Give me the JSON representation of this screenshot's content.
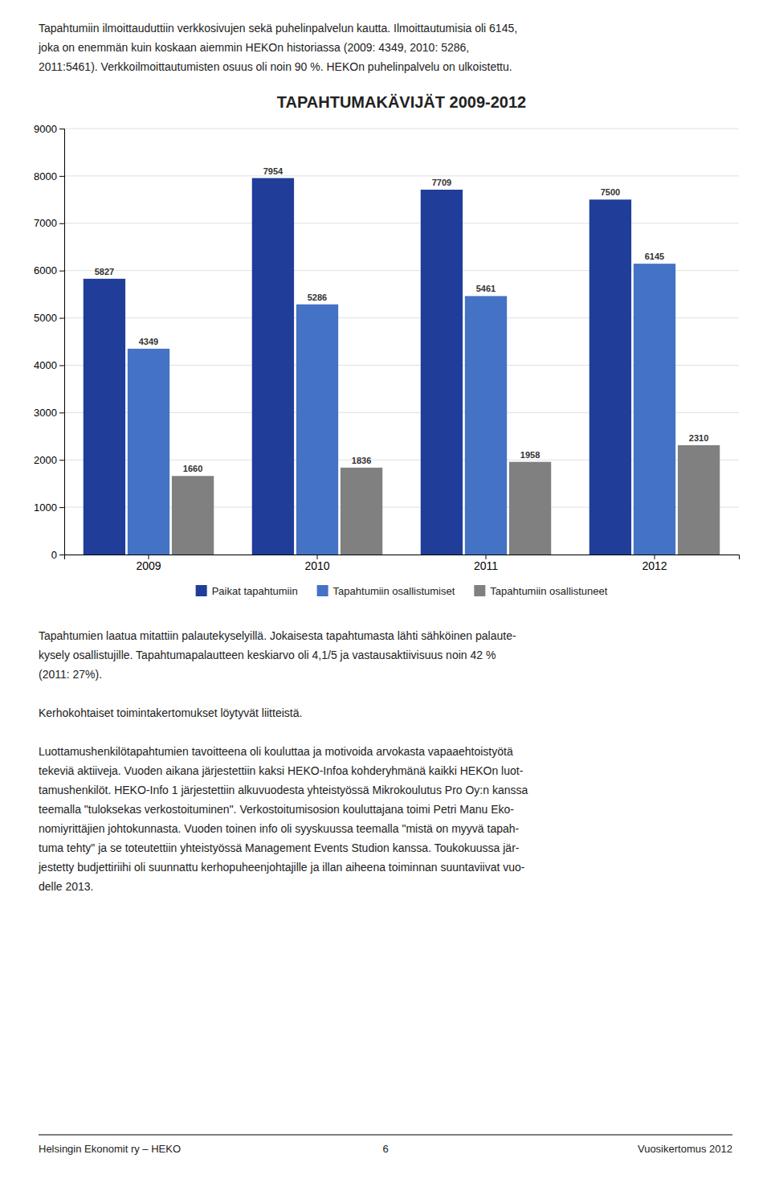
{
  "chart_data": {
    "type": "bar",
    "title": "TAPAHTUMAKÄVIJÄT 2009-2012",
    "categories": [
      "2009",
      "2010",
      "2011",
      "2012"
    ],
    "series": [
      {
        "name": "Paikat tapahtumiin",
        "color": "#1F3D99",
        "values": [
          5827,
          7954,
          7709,
          7500
        ]
      },
      {
        "name": "Tapahtumiin osallistumiset",
        "color": "#4472C4",
        "values": [
          4349,
          5286,
          5461,
          6145
        ]
      },
      {
        "name": "Tapahtumiin osallistuneet",
        "color": "#808080",
        "values": [
          1660,
          1836,
          1958,
          2310
        ]
      }
    ],
    "ylim": [
      0,
      9000
    ],
    "yticks": [
      0,
      1000,
      2000,
      3000,
      4000,
      5000,
      6000,
      7000,
      8000,
      9000
    ],
    "grid": true,
    "data_labels": true,
    "legend": "bottom"
  },
  "top_texts": [
    "Tapahtumiin ilmoittauduttiin verkkosivujen sekä puhelinpalvelun kautta. Ilmoittautumisia oli 6145,",
    "joka on enemmän kuin koskaan aiemmin HEKOn historiassa (2009: 4349, 2010: 5286,",
    "2011:5461). Verkkoilmoittautumisten osuus oli noin 90 %. HEKOn puhelinpalvelu on ulkoistettu."
  ],
  "below_texts": [
    [
      "Tapahtumien laatua mitattiin palautekyselyillä. Jokaisesta tapahtumasta lähti sähköinen palaute-",
      "kysely osallistujille.  Tapahtumapalautteen keskiarvo oli 4,1/5 ja vastausaktiivisuus noin 42 %",
      "(2011: 27%)."
    ],
    [
      "Kerhokohtaiset toimintakertomukset löytyvät liitteistä."
    ],
    [
      "Luottamushenkilötapahtumien tavoitteena oli kouluttaa ja motivoida arvokasta vapaaehtoistyötä",
      "tekeviä aktiiveja. Vuoden aikana järjestettiin kaksi HEKO-Infoa kohderyhmänä kaikki HEKOn luot-",
      "tamushenkilöt. HEKO-Info 1 järjestettiin alkuvuodesta yhteistyössä Mikrokoulutus Pro Oy:n kanssa",
      "teemalla \"tuloksekas verkostoituminen\". Verkostoitumisosion kouluttajana toimi Petri Manu Eko-",
      "nomiyrittäjien johtokunnasta. Vuoden toinen info oli syyskuussa teemalla \"mistä on myyvä tapah-",
      "tuma tehty\" ja se toteutettiin yhteistyössä Management Events Studion kanssa. Toukokuussa jär-",
      "jestetty budjettiriihi oli suunnattu kerhopuheenjohtajille ja illan aiheena toiminnan suuntaviivat vuo-",
      "delle 2013."
    ]
  ],
  "footer_left": "Helsingin Ekonomit ry – HEKO",
  "footer_center": "6",
  "footer_right": "Vuosikertomus 2012"
}
